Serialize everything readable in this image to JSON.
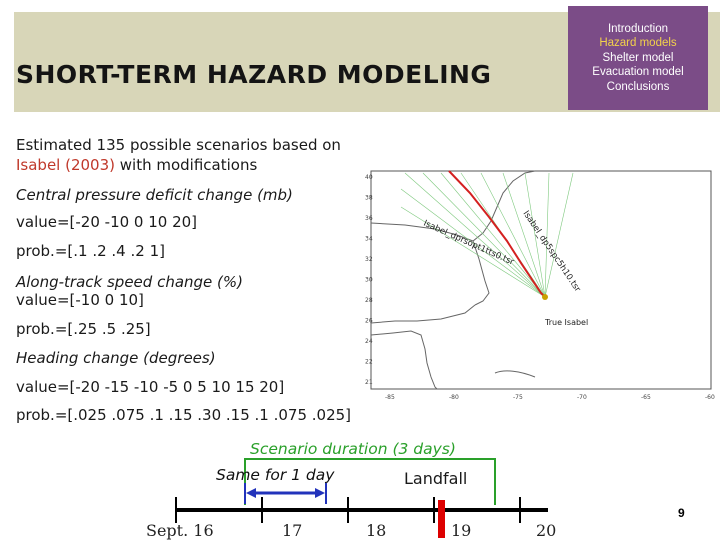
{
  "header": {
    "title": "SHORT-TERM HAZARD MODELING"
  },
  "nav": {
    "items": [
      {
        "label": "Introduction",
        "active": false
      },
      {
        "label": "Hazard models",
        "active": true
      },
      {
        "label": "Shelter model",
        "active": false
      },
      {
        "label": "Evacuation model",
        "active": false
      },
      {
        "label": "Conclusions",
        "active": false
      }
    ]
  },
  "content": {
    "intro_line1": "Estimated 135 possible scenarios based on",
    "intro_storm": "Isabel (2003)",
    "intro_rest": " with modifications",
    "pressure_label": "Central pressure deficit change (mb)",
    "pressure_value": "value=[-20 -10 0 10 20]",
    "pressure_prob": "prob.=[.1 .2 .4 .2 1]",
    "speed_label": "Along-track speed change (%)",
    "speed_value": "value=[-10 0 10]",
    "speed_prob": "prob.=[.25 .5 .25]",
    "heading_label": "Heading change (degrees)",
    "heading_value": "value=[-20 -15 -10 -5 0 5 10 15 20]",
    "heading_prob": "prob.=[.025 .075 .1 .15 .30 .15 .1 .075 .025]"
  },
  "map": {
    "y_ticks": [
      "40",
      "38",
      "36",
      "34",
      "32",
      "30",
      "28",
      "26",
      "24",
      "22",
      "21"
    ],
    "x_ticks": [
      "-85",
      "-80",
      "-75",
      "-70",
      "-65",
      "-60"
    ],
    "annot_pressure": "Isabel_dprsopt1tts0.tsr",
    "annot_speed": "Isabel_dp5spc5h10.tsr",
    "annot_true": "True Isabel",
    "colors": {
      "true_track": "#d42020",
      "scenario_tracks": "#7fc97f",
      "track_endpoint": "#c8a000"
    }
  },
  "timeline": {
    "duration_label": "Scenario duration (3 days)",
    "same_label": "Same for 1 day",
    "landfall_label": "Landfall",
    "days": [
      "Sept. 16",
      "17",
      "18",
      "19",
      "20"
    ],
    "colors": {
      "bracket": "#2aa02a",
      "arrow": "#2233bb",
      "landfall": "#dd0000"
    }
  },
  "footer": {
    "page": "9"
  }
}
